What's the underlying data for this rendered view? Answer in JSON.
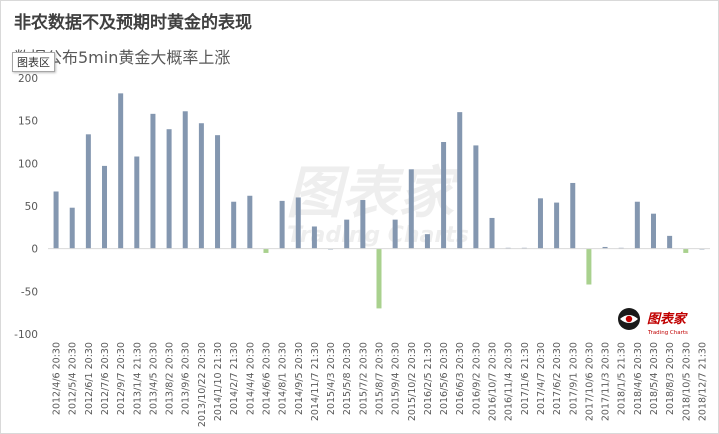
{
  "title": "非农数据不及预期时黄金的表现",
  "subtitle": "数据公布5min黄金大概率上涨",
  "tooltip_label": "图表区",
  "watermark": {
    "text": "图表家",
    "subtext": "Trading Charts"
  },
  "logo": {
    "text": "图表家",
    "subtext": "Trading Charts",
    "icon": "eye-logo-icon"
  },
  "colors": {
    "positive": "#8497b0",
    "negative": "#a9d18e",
    "zero_line": "#d9d9d9",
    "axis_text": "#595959",
    "logo_red": "#c00000"
  },
  "chart_data": {
    "type": "bar",
    "title": "非农数据不及预期时黄金的表现",
    "subtitle": "数据公布5min黄金大概率上涨",
    "xlabel": "",
    "ylabel": "",
    "ylim": [
      -100,
      200
    ],
    "yticks": [
      200,
      150,
      100,
      50,
      0,
      -50,
      -100
    ],
    "grid": false,
    "legend": "none",
    "categories": [
      "2012/4/6 20:30",
      "2012/5/4 20:30",
      "2012/6/1 20:30",
      "2012/7/6 20:30",
      "2012/9/7 20:30",
      "2013/1/4 21:30",
      "2013/4/5 20:30",
      "2013/8/2 20:30",
      "2013/9/6 20:30",
      "2013/10/22 20:30",
      "2014/1/10 21:30",
      "2014/2/7 21:30",
      "2014/4/4 20:30",
      "2014/6/6 20:30",
      "2014/8/1 20:30",
      "2014/9/5 20:30",
      "2014/11/7 21:30",
      "2015/4/3 20:30",
      "2015/5/8 20:30",
      "2015/7/2 20:30",
      "2015/8/7 20:30",
      "2015/9/4 20:30",
      "2015/10/2 20:30",
      "2016/2/5 21:30",
      "2016/5/6 20:30",
      "2016/6/3 20:30",
      "2016/9/2 20:30",
      "2016/10/7 20:30",
      "2016/11/4 20:30",
      "2017/1/6 21:30",
      "2017/4/7 20:30",
      "2017/6/2 20:30",
      "2017/9/1 20:30",
      "2017/10/6 20:30",
      "2017/11/3 20:30",
      "2018/1/5 21:30",
      "2018/4/6 20:30",
      "2018/5/4 20:30",
      "2018/8/3 20:30",
      "2018/10/5 20:30",
      "2018/12/7 21:30"
    ],
    "values": [
      67,
      48,
      134,
      97,
      182,
      108,
      158,
      140,
      161,
      147,
      133,
      55,
      62,
      -5,
      56,
      60,
      26,
      0,
      34,
      57,
      -70,
      34,
      93,
      17,
      125,
      160,
      121,
      36,
      1,
      1,
      59,
      54,
      77,
      -42,
      2,
      1,
      55,
      41,
      15,
      -5,
      0
    ]
  }
}
